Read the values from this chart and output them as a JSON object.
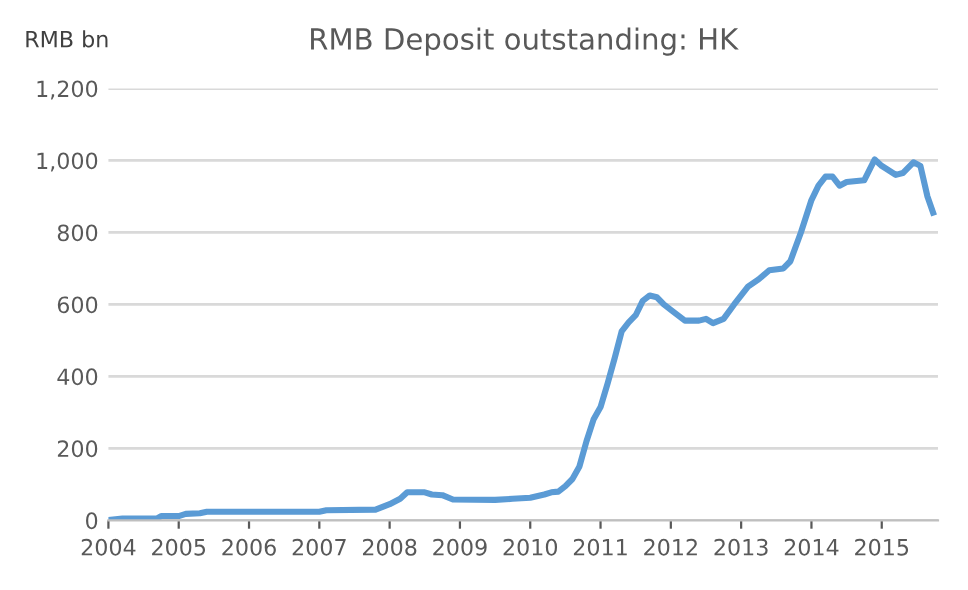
{
  "chart_data": {
    "type": "line",
    "title": "RMB Deposit outstanding: HK",
    "ylabel": "RMB bn",
    "x": [
      2004.0,
      2004.2,
      2004.7,
      2004.75,
      2005.0,
      2005.1,
      2005.3,
      2005.4,
      2007.0,
      2007.1,
      2007.8,
      2008.0,
      2008.15,
      2008.25,
      2008.5,
      2008.6,
      2008.75,
      2008.9,
      2009.5,
      2009.75,
      2010.0,
      2010.2,
      2010.3,
      2010.4,
      2010.5,
      2010.6,
      2010.7,
      2010.8,
      2010.9,
      2011.0,
      2011.1,
      2011.2,
      2011.3,
      2011.4,
      2011.5,
      2011.6,
      2011.7,
      2011.8,
      2011.9,
      2012.0,
      2012.2,
      2012.4,
      2012.5,
      2012.6,
      2012.75,
      2012.9,
      2013.1,
      2013.25,
      2013.4,
      2013.6,
      2013.7,
      2013.85,
      2014.0,
      2014.1,
      2014.2,
      2014.3,
      2014.4,
      2014.5,
      2014.75,
      2014.9,
      2015.0,
      2015.2,
      2015.3,
      2015.45,
      2015.55,
      2015.65,
      2015.73
    ],
    "series": [
      {
        "color": "#5b9bd5",
        "values": [
          1,
          5,
          6,
          12,
          12,
          18,
          20,
          24,
          24,
          28,
          30,
          45,
          60,
          78,
          78,
          72,
          70,
          58,
          57,
          60,
          63,
          72,
          78,
          80,
          95,
          115,
          150,
          220,
          280,
          315,
          380,
          450,
          525,
          550,
          570,
          610,
          625,
          620,
          600,
          585,
          555,
          555,
          560,
          548,
          560,
          600,
          650,
          670,
          695,
          700,
          720,
          800,
          890,
          930,
          955,
          955,
          930,
          940,
          945,
          1003,
          985,
          960,
          965,
          995,
          985,
          900,
          855
        ]
      }
    ],
    "xlim": [
      2004,
      2015.8
    ],
    "xticks": [
      2004,
      2005,
      2006,
      2007,
      2008,
      2009,
      2010,
      2011,
      2012,
      2013,
      2014,
      2015
    ],
    "ylim": [
      0,
      1200
    ],
    "yticks": [
      0,
      {
        "value": 200,
        "label": "200"
      },
      {
        "value": 400,
        "label": "400"
      },
      {
        "value": 600,
        "label": "600"
      },
      {
        "value": 800,
        "label": "800"
      },
      {
        "value": 1000,
        "label": "1,000"
      },
      {
        "value": 1200,
        "label": "1,200"
      }
    ],
    "grid": "y",
    "legend": false,
    "marker": "none",
    "line_style": "solid"
  }
}
